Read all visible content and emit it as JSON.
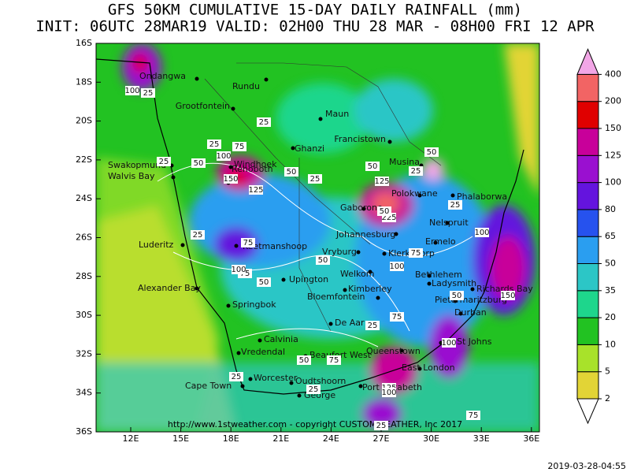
{
  "header": {
    "title": "GFS 50KM  CUMULATIVE 15-DAY DAILY RAINFALL (mm)",
    "subtitle": "INIT: 06UTC 28MAR19  VALID: 02H00 THU 28 MAR - 08H00 FRI 12 APR"
  },
  "map": {
    "lat_labels": [
      "16S",
      "18S",
      "20S",
      "22S",
      "24S",
      "26S",
      "28S",
      "30S",
      "32S",
      "34S",
      "36S"
    ],
    "lon_labels": [
      "12E",
      "15E",
      "18E",
      "21E",
      "24E",
      "27E",
      "30E",
      "33E",
      "36E"
    ],
    "cities": [
      "Ondangwa",
      "Rundu",
      "Grootfontein",
      "Maun",
      "Francistown",
      "Ghanzi",
      "Swakopmund",
      "Walvis Bay",
      "Windhoek",
      "Rehoboth",
      "Musina",
      "Polokwane",
      "Phalaborwa",
      "Gaborone",
      "Nelspruit",
      "Johannesburg",
      "Ermelo",
      "Klerksdorp",
      "Vryburg",
      "Luderitz",
      "Keetmanshoop",
      "Upington",
      "Welkom",
      "Kimberley",
      "Bethlehem",
      "Ladysmith",
      "Bloemfontein",
      "Richards Bay",
      "Pietermaritzburg",
      "Durban",
      "Alexander Bay",
      "Springbok",
      "De Aar",
      "Calvinia",
      "Vredendal",
      "Beaufort West",
      "Queenstown",
      "St Johns",
      "East London",
      "Worcester",
      "Oudtshoorn",
      "Cape Town",
      "George",
      "Port Elizabeth"
    ],
    "contour_labels": [
      "100",
      "25",
      "25",
      "25",
      "75",
      "100",
      "50",
      "50",
      "25",
      "150",
      "125",
      "50",
      "25",
      "125",
      "225",
      "50",
      "75",
      "25",
      "75",
      "100",
      "50",
      "75",
      "100",
      "25",
      "25",
      "50",
      "50",
      "75",
      "25",
      "100",
      "150",
      "50",
      "25",
      "75",
      "50",
      "100",
      "25",
      "125",
      "100",
      "75",
      "25"
    ],
    "credit": "http://www.1stweather.com - copyright CUSTOMWEATHER, Inc 2017"
  },
  "colorbar": {
    "ticks": [
      2,
      5,
      10,
      20,
      35,
      50,
      65,
      80,
      100,
      125,
      150,
      200,
      400
    ],
    "colors": [
      "#ffffff",
      "#e2d436",
      "#a8e22a",
      "#22c222",
      "#1ed68c",
      "#2cc6c6",
      "#2a9ef0",
      "#2652ee",
      "#6414de",
      "#9a10d0",
      "#c8009a",
      "#e00000",
      "#f26464",
      "#f2a6e6"
    ]
  },
  "timestamp": "2019-03-28-04:55"
}
